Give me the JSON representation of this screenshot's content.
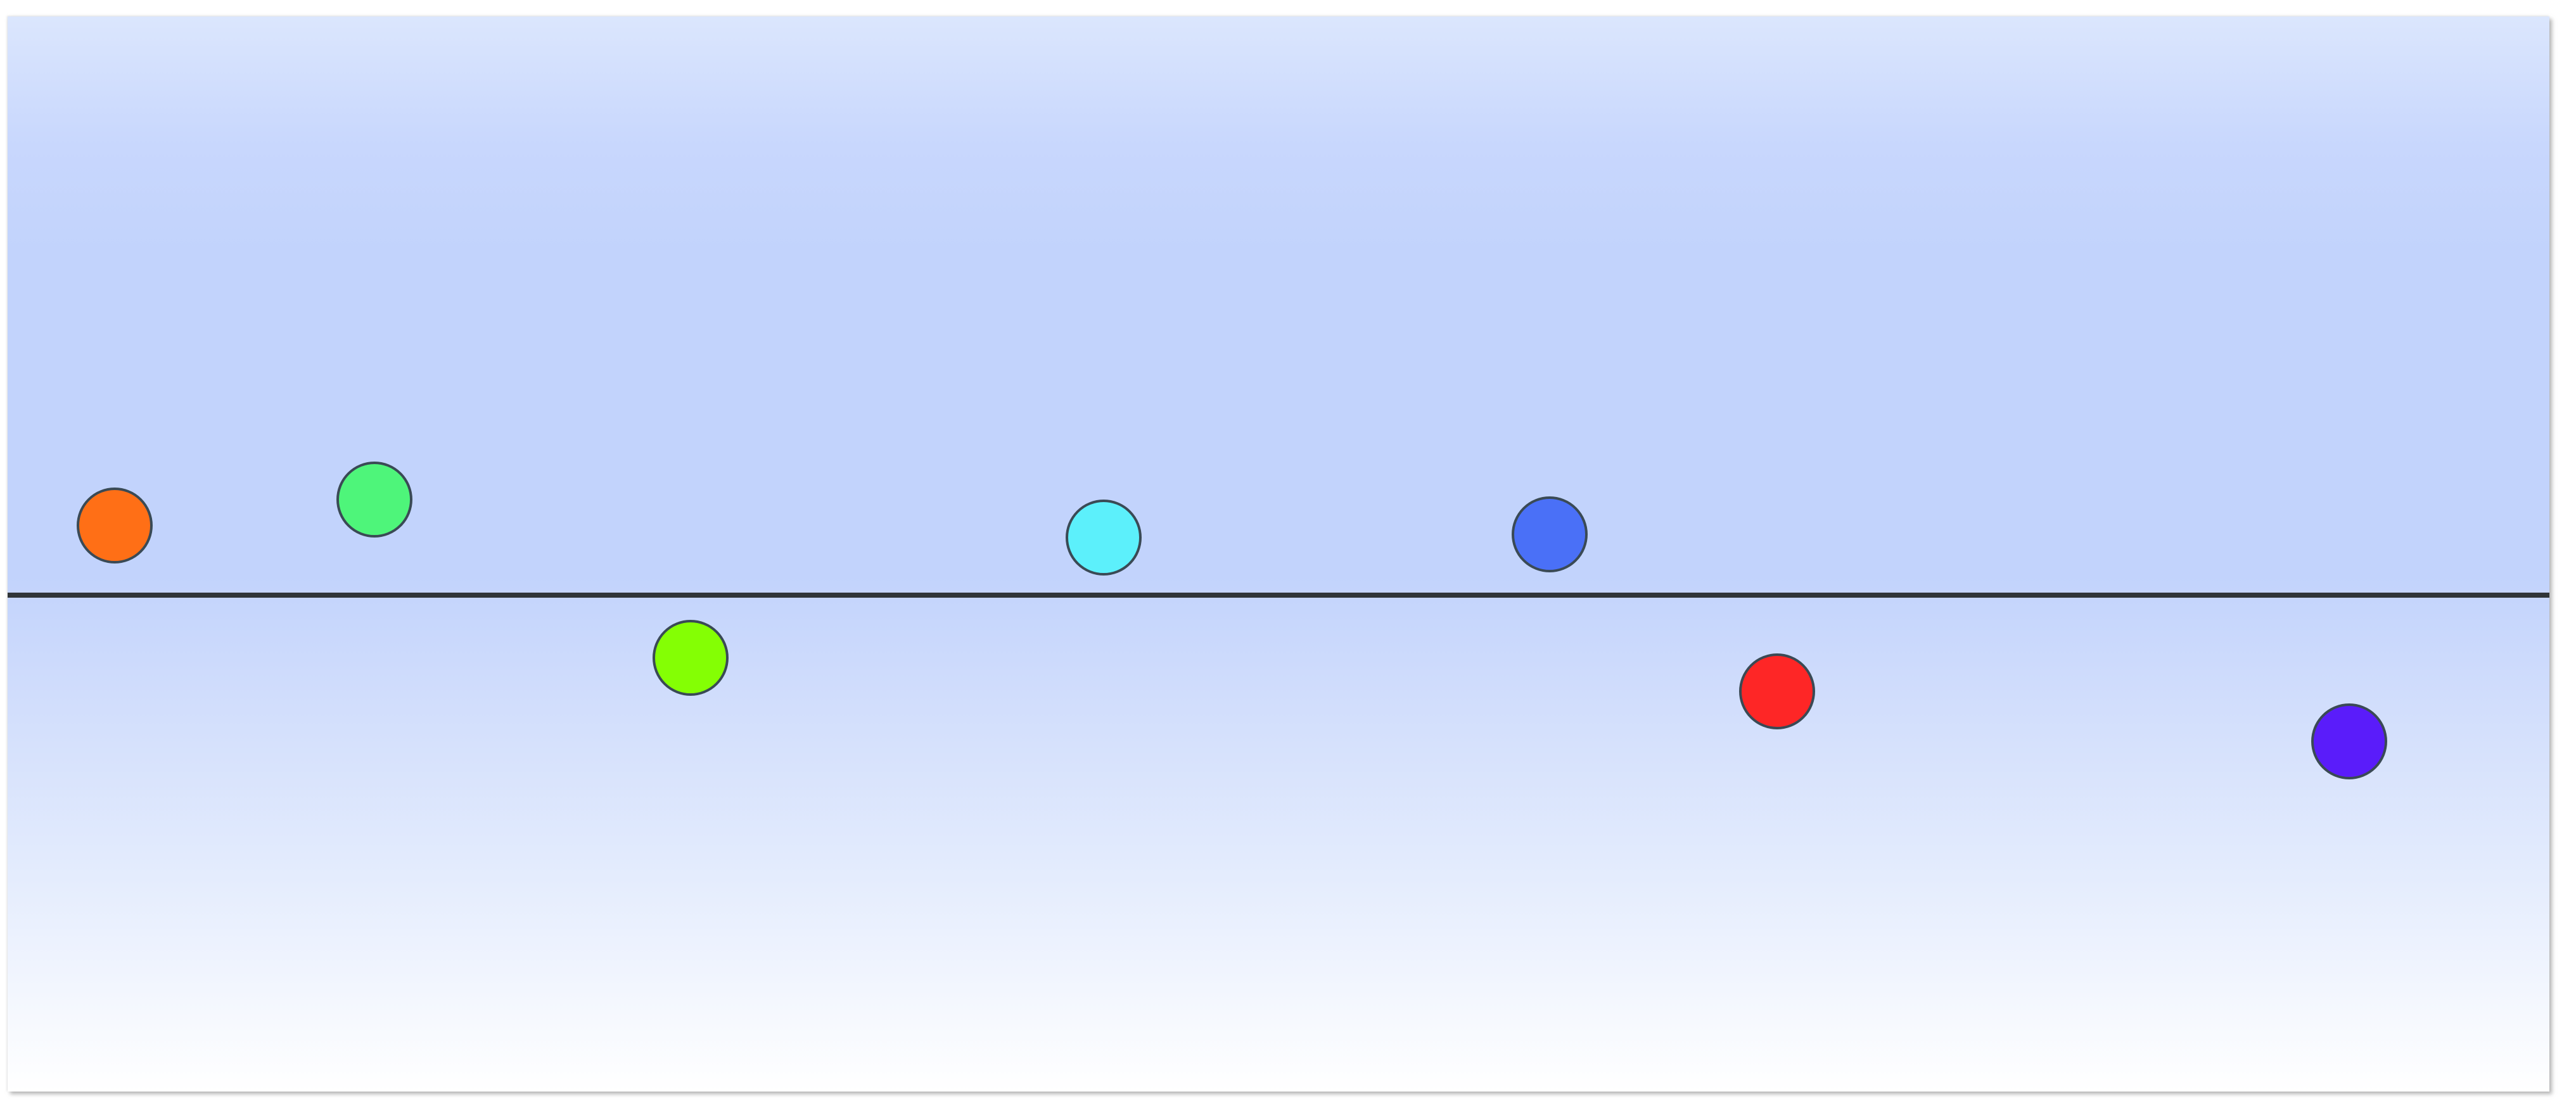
{
  "dots": [
    {
      "name": "orange-dot",
      "color": "#ff6f16"
    },
    {
      "name": "green-dot",
      "color": "#4ef57a"
    },
    {
      "name": "lime-dot",
      "color": "#84ff04"
    },
    {
      "name": "cyan-dot",
      "color": "#5cf0fb"
    },
    {
      "name": "blue-dot",
      "color": "#4a70f7"
    },
    {
      "name": "red-dot",
      "color": "#fe2626"
    },
    {
      "name": "violet-dot",
      "color": "#5a1cfa"
    }
  ],
  "baseline_color": "#2f3438"
}
